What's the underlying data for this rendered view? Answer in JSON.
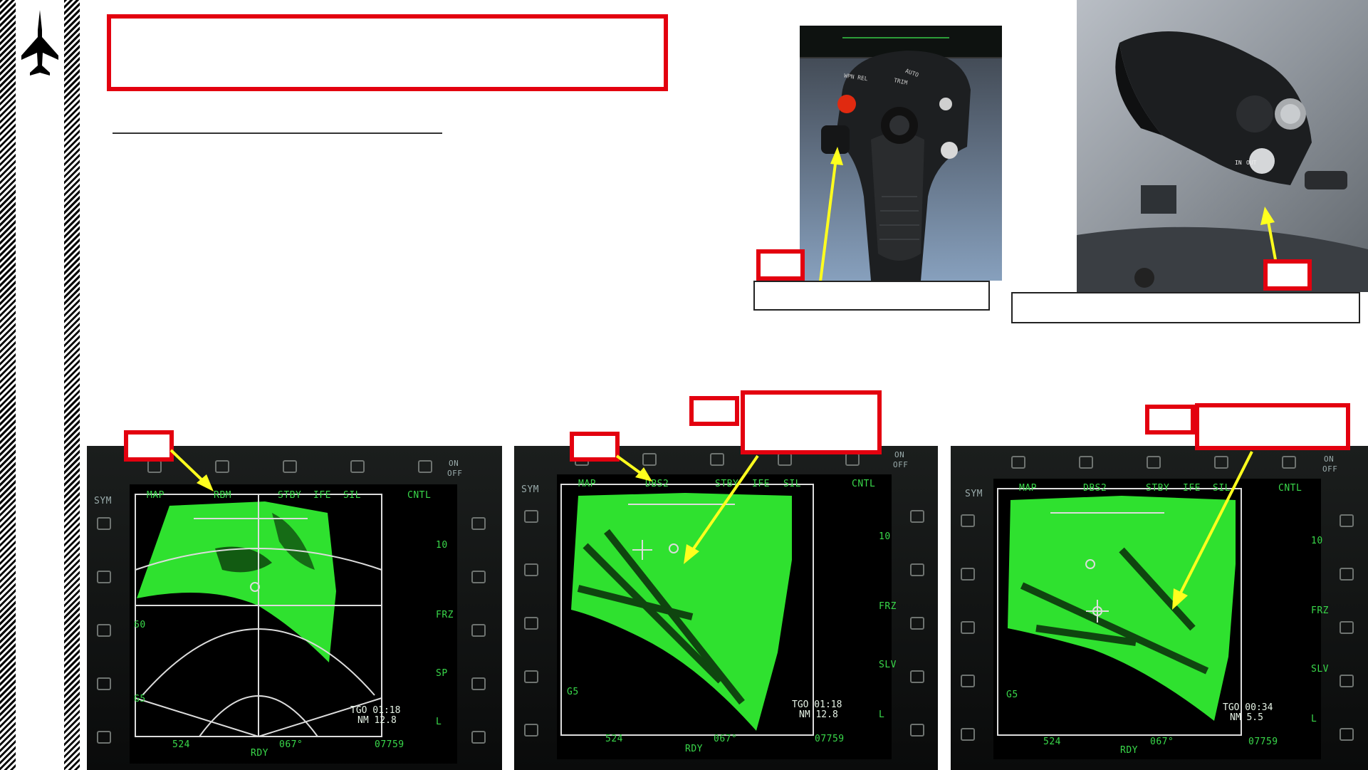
{
  "colors": {
    "accent_red": "#e3000f",
    "arrow_yellow": "#ffff1e",
    "radar_green": "#2fe12f",
    "symbology_green": "#39d84a"
  },
  "logo": {
    "icon": "jet-silhouette-icon"
  },
  "mfds": [
    {
      "top_labels": [
        "MAP",
        "RBM",
        "STBY",
        "IFE",
        "SIL",
        "CNTL"
      ],
      "left_label": "SYM",
      "left_values": [
        "60",
        "G5"
      ],
      "right_values": [
        "10",
        "FRZ",
        "SP",
        "L"
      ],
      "onoff": [
        "ON",
        "OFF"
      ],
      "tgo": "TGO 01:18",
      "nm": "NM  12.8",
      "bottom_left": "524",
      "bottom_mid": "RDY",
      "heading": "067°",
      "bottom_right": "07759"
    },
    {
      "top_labels": [
        "MAP",
        "DBS2",
        "STBY",
        "IFE",
        "SIL",
        "CNTL"
      ],
      "left_label": "SYM",
      "left_values": [
        "G5"
      ],
      "right_values": [
        "10",
        "FRZ",
        "SLV",
        "L"
      ],
      "onoff": [
        "ON",
        "OFF"
      ],
      "tgo": "TGO 01:18",
      "nm": "NM  12.8",
      "bottom_left": "524",
      "bottom_mid": "RDY",
      "heading": "067°",
      "bottom_right": "07759"
    },
    {
      "top_labels": [
        "MAP",
        "DBS2",
        "STBY",
        "IFE",
        "SIL",
        "CNTL"
      ],
      "left_label": "SYM",
      "left_values": [
        "G5"
      ],
      "right_values": [
        "10",
        "FRZ",
        "SLV",
        "L"
      ],
      "onoff": [
        "ON",
        "OFF"
      ],
      "tgo": "TGO 00:34",
      "nm": "NM   5.5",
      "bottom_left": "524",
      "bottom_mid": "RDY",
      "heading": "067°",
      "bottom_right": "07759"
    }
  ],
  "stick_photo": {
    "labels": [
      "WPN REL",
      "AUTO",
      "TRIM"
    ]
  },
  "throttle_photo": {
    "labels": [
      "IN",
      "OUT"
    ]
  }
}
